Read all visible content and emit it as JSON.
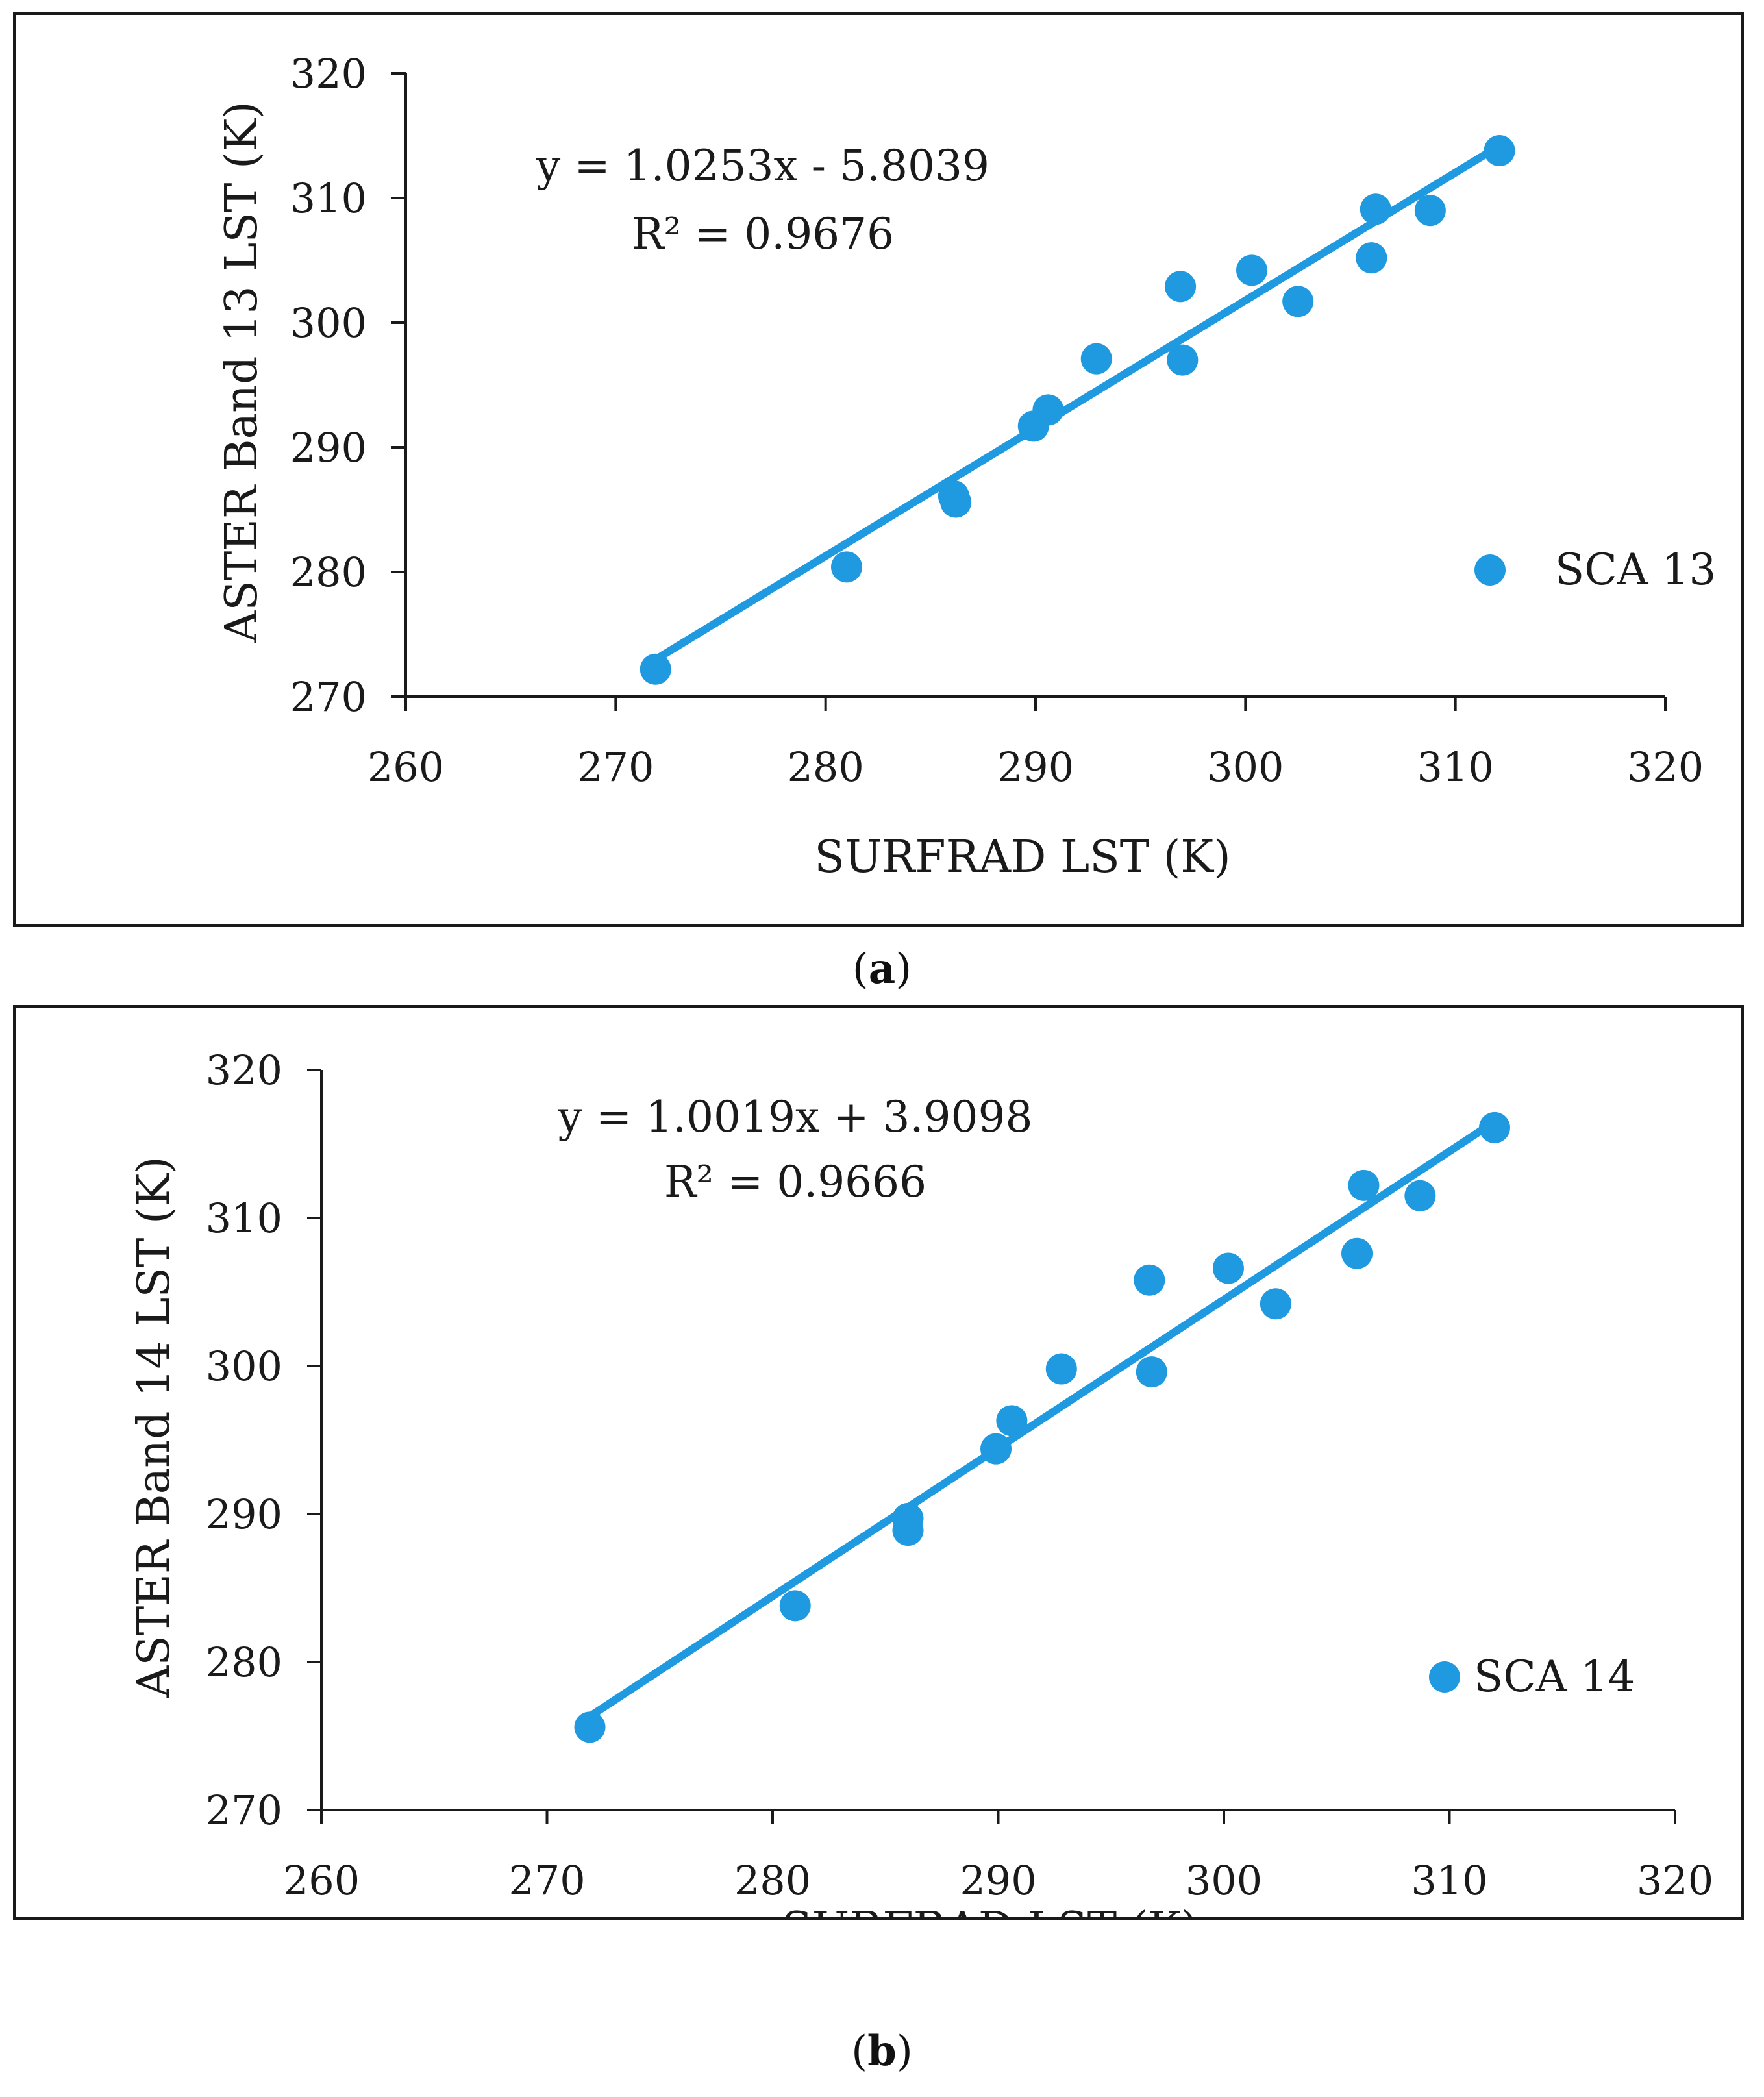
{
  "colors": {
    "series": "#1f9ae0",
    "axis": "#1a1a1a"
  },
  "chart_data": [
    {
      "type": "scatter",
      "panel": "a",
      "caption": {
        "open": "(",
        "label": "a",
        "close": ")"
      },
      "xlabel": "SURFRAD LST (K)",
      "ylabel": "ASTER Band 13 LST (K)",
      "xlim": [
        260,
        320
      ],
      "ylim": [
        270,
        320
      ],
      "xticks": [
        "260",
        "270",
        "280",
        "290",
        "300",
        "310",
        "320"
      ],
      "yticks": [
        "270",
        "280",
        "290",
        "300",
        "310",
        "320"
      ],
      "equation": "y = 1.0253x - 5.8039",
      "r2": "R² = 0.9676",
      "trendline": {
        "slope": 1.0253,
        "intercept": -5.8039,
        "x_range": [
          271.9,
          312
        ]
      },
      "legend": {
        "label": "SCA 13",
        "position": "right"
      },
      "series": [
        {
          "name": "SCA 13",
          "points": [
            [
              271.9,
              272.2
            ],
            [
              281.0,
              280.4
            ],
            [
              286.1,
              286.1
            ],
            [
              286.2,
              285.6
            ],
            [
              289.9,
              291.7
            ],
            [
              290.6,
              293.0
            ],
            [
              292.9,
              297.1
            ],
            [
              296.9,
              302.9
            ],
            [
              297.0,
              297.0
            ],
            [
              300.3,
              304.2
            ],
            [
              302.5,
              301.7
            ],
            [
              306.0,
              305.2
            ],
            [
              306.2,
              309.1
            ],
            [
              308.8,
              309.0
            ],
            [
              312.1,
              313.8
            ]
          ]
        }
      ]
    },
    {
      "type": "scatter",
      "panel": "b",
      "caption": {
        "open": "(",
        "label": "b",
        "close": ")"
      },
      "xlabel": "SURFRAD LST (K)",
      "ylabel": "ASTER Band 14 LST (K)",
      "xlim": [
        260,
        320
      ],
      "ylim": [
        270,
        320
      ],
      "xticks": [
        "260",
        "270",
        "280",
        "290",
        "300",
        "310",
        "320"
      ],
      "yticks": [
        "270",
        "280",
        "290",
        "300",
        "310",
        "320"
      ],
      "equation": "y = 1.0019x + 3.9098",
      "r2": "R² = 0.9666",
      "trendline": {
        "slope": 1.0019,
        "intercept": 3.9098,
        "x_range": [
          271.9,
          312
        ]
      },
      "legend": {
        "label": "SCA 14",
        "position": "right"
      },
      "series": [
        {
          "name": "SCA 14",
          "points": [
            [
              271.9,
              275.6
            ],
            [
              281.0,
              283.8
            ],
            [
              286.0,
              288.9
            ],
            [
              286.0,
              289.7
            ],
            [
              289.9,
              294.4
            ],
            [
              290.6,
              296.3
            ],
            [
              292.8,
              299.8
            ],
            [
              296.7,
              305.8
            ],
            [
              296.8,
              299.6
            ],
            [
              300.2,
              306.6
            ],
            [
              302.3,
              304.2
            ],
            [
              305.9,
              307.6
            ],
            [
              306.2,
              312.2
            ],
            [
              308.7,
              311.5
            ],
            [
              312.0,
              316.1
            ]
          ]
        }
      ]
    }
  ]
}
